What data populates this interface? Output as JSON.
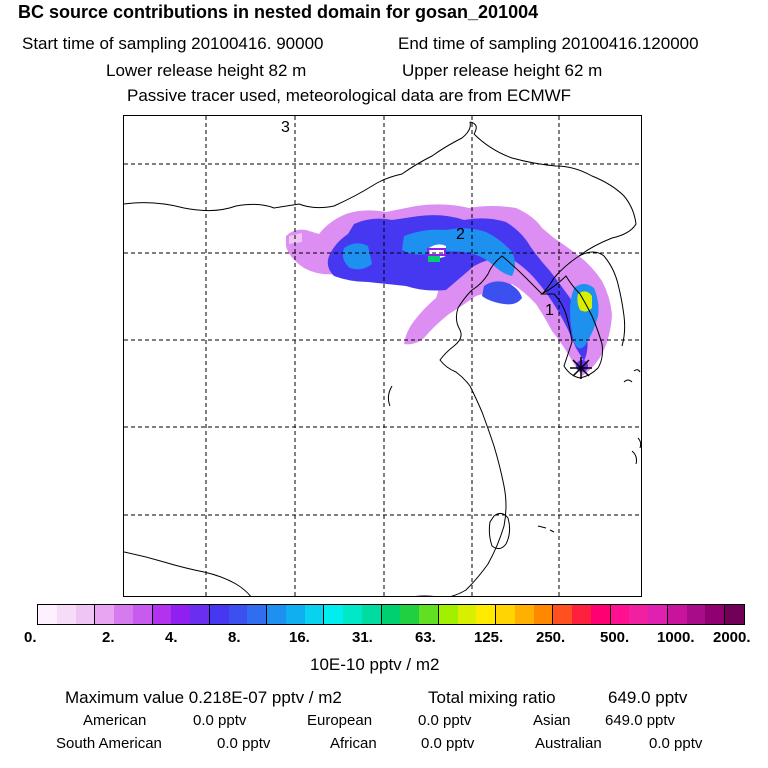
{
  "header": {
    "title": "BC  source contributions in nested domain for gosan_201004",
    "start_label": "Start time of sampling 20100416. 90000",
    "end_label": "End time of sampling 20100416.120000",
    "lower_release": "Lower release height   82 m",
    "upper_release": "Upper release height   62 m",
    "note": "Passive tracer used, meteorological data are from ECMWF"
  },
  "map": {
    "labels": [
      "1",
      "2",
      "3"
    ],
    "receptor_marker": "star-marker"
  },
  "colorbar": {
    "colors": [
      "#fff0ff",
      "#f7dcf7",
      "#eec5f5",
      "#e8a6f2",
      "#d67af0",
      "#c85af0",
      "#b232f0",
      "#9020f0",
      "#6a2ef0",
      "#4638f0",
      "#3c50f0",
      "#2f6ef0",
      "#1e90f0",
      "#10b0f0",
      "#08d2f0",
      "#00eeee",
      "#00e8c8",
      "#00dca0",
      "#00d070",
      "#20d040",
      "#60e020",
      "#a0f000",
      "#d8f000",
      "#ffea00",
      "#ffd400",
      "#ffb000",
      "#ff8800",
      "#ff5020",
      "#ff2040",
      "#ff0070",
      "#ff1090",
      "#f020a0",
      "#e020b0",
      "#c8149c",
      "#a80c88",
      "#900070",
      "#700058"
    ],
    "ticks": [
      "0.",
      "2.",
      "4.",
      "8.",
      "16.",
      "31.",
      "63.",
      "125.",
      "250.",
      "500.",
      "1000.",
      "2000."
    ],
    "unit": "10E-10 pptv / m2"
  },
  "stats": {
    "maximum": "Maximum value  0.218E-07 pptv / m2",
    "total": "Total mixing ratio",
    "total_value": "649.0 pptv",
    "regions": [
      {
        "name": "American",
        "value": "0.0 pptv"
      },
      {
        "name": "European",
        "value": "0.0 pptv"
      },
      {
        "name": "Asian",
        "value": "649.0 pptv"
      },
      {
        "name": "South American",
        "value": "0.0 pptv"
      },
      {
        "name": "African",
        "value": "0.0 pptv"
      },
      {
        "name": "Australian",
        "value": "0.0 pptv"
      }
    ]
  }
}
